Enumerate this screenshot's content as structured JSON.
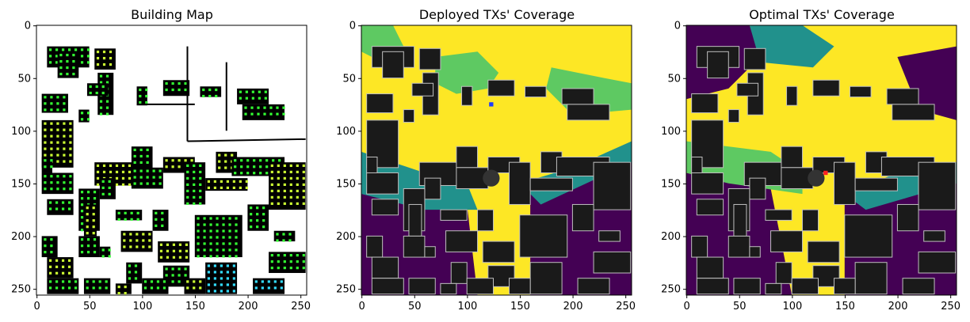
{
  "chart_data": [
    {
      "type": "heatmap",
      "title": "Building Map",
      "xlabel": "",
      "ylabel": "",
      "xlim": [
        0,
        255
      ],
      "ylim": [
        255,
        0
      ],
      "xticks": [
        0,
        50,
        100,
        150,
        200,
        250
      ],
      "yticks": [
        0,
        50,
        100,
        150,
        200,
        250
      ],
      "legend": "none",
      "colors": {
        "building": "#000000",
        "background": "#ffffff",
        "rx_point_green": "#33ff33",
        "rx_point_yellow": "#ccff33",
        "rx_point_cyan": "#33ddff"
      }
    },
    {
      "type": "heatmap",
      "title": "Deployed TXs' Coverage",
      "xlabel": "",
      "ylabel": "",
      "xlim": [
        0,
        255
      ],
      "ylim": [
        255,
        0
      ],
      "xticks": [
        0,
        50,
        100,
        150,
        200,
        250
      ],
      "yticks": [
        0,
        50,
        100,
        150,
        200,
        250
      ],
      "legend": "none",
      "tx_marker": {
        "x": 123,
        "y": 75,
        "color": "#1f3cff"
      },
      "colors": {
        "level_1": "#440154",
        "level_2": "#21918c",
        "level_3": "#5ec962",
        "level_4": "#fde725",
        "building": "#1a1a1a"
      }
    },
    {
      "type": "heatmap",
      "title": "Optimal TXs' Coverage",
      "xlabel": "",
      "ylabel": "",
      "xlim": [
        0,
        255
      ],
      "ylim": [
        255,
        0
      ],
      "xticks": [
        0,
        50,
        100,
        150,
        200,
        250
      ],
      "yticks": [
        0,
        50,
        100,
        150,
        200,
        250
      ],
      "legend": "none",
      "tx_marker": {
        "x": 132,
        "y": 140,
        "color": "#ff2020"
      },
      "colors": {
        "level_1": "#440154",
        "level_2": "#21918c",
        "level_3": "#5ec962",
        "level_4": "#fde725",
        "building": "#1a1a1a"
      }
    }
  ]
}
